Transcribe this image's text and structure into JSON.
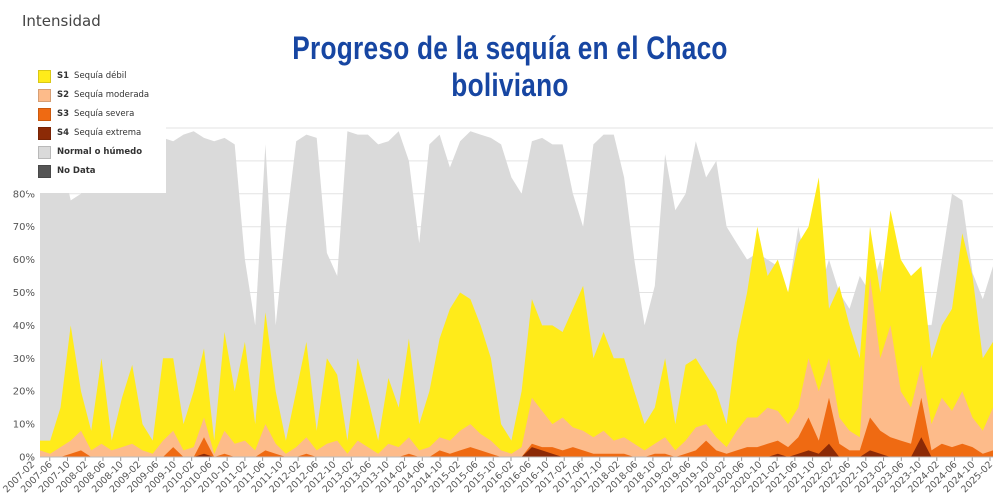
{
  "header": {
    "intensity_label": "Intensidad",
    "title": "Progreso de la sequía en el Chaco boliviano"
  },
  "legend": {
    "items": [
      {
        "code": "S1",
        "label": "Sequía débil",
        "color": "#ffeb1a"
      },
      {
        "code": "S2",
        "label": "Sequía moderada",
        "color": "#fdbb8a"
      },
      {
        "code": "S3",
        "label": "Sequía severa",
        "color": "#ef6a12"
      },
      {
        "code": "S4",
        "label": "Sequía extrema",
        "color": "#8c2a06"
      },
      {
        "code": "",
        "label": "Normal o húmedo",
        "color": "#dadada"
      },
      {
        "code": "",
        "label": "No Data",
        "color": "#555555"
      }
    ]
  },
  "chart_data": {
    "type": "area",
    "stacked": false,
    "y_tick_labels": [
      "0%",
      "10%",
      "20%",
      "30%",
      "40%",
      "50%",
      "60%",
      "70%",
      "80%"
    ],
    "ylim": [
      0,
      100
    ],
    "grid": true,
    "legend_position": "top-left",
    "x_tick_labels": [
      "2007-02",
      "2007-06",
      "2007-10",
      "2008-02",
      "2008-06",
      "2008-10",
      "2009-02",
      "2009-06",
      "2009-10",
      "2010-02",
      "2010-06",
      "2010-10",
      "2011-02",
      "2011-06",
      "2011-10",
      "2012-02",
      "2012-06",
      "2012-10",
      "2013-02",
      "2013-06",
      "2013-10",
      "2014-02",
      "2014-06",
      "2014-10",
      "2015-02",
      "2015-06",
      "2015-10",
      "2016-02",
      "2016-06",
      "2016-10",
      "2017-02",
      "2017-06",
      "2017-10",
      "2018-02",
      "2018-06",
      "2018-10",
      "2019-02",
      "2019-06",
      "2019-10",
      "2020-02",
      "2020-06",
      "2020-10",
      "2021-02",
      "2021-06",
      "2021-10",
      "2022-02",
      "2022-06",
      "2022-10",
      "2023-02",
      "2023-06",
      "2023-10",
      "2024-02",
      "2024-06",
      "2024-10",
      "2025-02"
    ],
    "series": [
      {
        "name": "Normal o húmedo",
        "color": "#dadada",
        "values": [
          98,
          90,
          92,
          78,
          80,
          96,
          98,
          99,
          97,
          95,
          94,
          92,
          97,
          96,
          98,
          99,
          97,
          96,
          97,
          95,
          60,
          40,
          95,
          40,
          70,
          96,
          98,
          97,
          62,
          55,
          99,
          98,
          98,
          95,
          96,
          99,
          90,
          65,
          95,
          98,
          88,
          96,
          99,
          98,
          97,
          95,
          85,
          80,
          96,
          97,
          95,
          95,
          80,
          70,
          95,
          98,
          98,
          85,
          60,
          40,
          52,
          92,
          75,
          80,
          96,
          85,
          90,
          70,
          65,
          60,
          62,
          60,
          58,
          50,
          70,
          55,
          50,
          60,
          50,
          45,
          55,
          50,
          60,
          45,
          55,
          50,
          40,
          40,
          60,
          80,
          78,
          56,
          48,
          58
        ]
      },
      {
        "name": "Sequía débil",
        "color": "#ffeb1a",
        "values": [
          5,
          5,
          15,
          40,
          20,
          8,
          30,
          5,
          18,
          28,
          10,
          5,
          30,
          30,
          10,
          20,
          33,
          5,
          38,
          20,
          35,
          10,
          44,
          20,
          5,
          20,
          35,
          8,
          30,
          25,
          5,
          30,
          18,
          5,
          24,
          15,
          36,
          10,
          20,
          36,
          45,
          50,
          48,
          40,
          30,
          10,
          5,
          20,
          48,
          40,
          40,
          38,
          45,
          52,
          30,
          38,
          30,
          30,
          20,
          10,
          15,
          30,
          10,
          28,
          30,
          25,
          20,
          10,
          35,
          50,
          70,
          55,
          60,
          50,
          65,
          70,
          85,
          45,
          52,
          40,
          30,
          70,
          50,
          75,
          60,
          55,
          58,
          30,
          40,
          45,
          68,
          55,
          30,
          35
        ]
      },
      {
        "name": "Sequía moderada",
        "color": "#fdbb8a",
        "values": [
          2,
          1,
          3,
          5,
          8,
          2,
          4,
          2,
          3,
          4,
          2,
          1,
          5,
          8,
          2,
          3,
          12,
          1,
          8,
          4,
          5,
          2,
          10,
          4,
          1,
          3,
          6,
          2,
          4,
          5,
          1,
          5,
          3,
          1,
          4,
          3,
          6,
          2,
          3,
          6,
          5,
          8,
          10,
          7,
          5,
          2,
          1,
          3,
          18,
          14,
          10,
          12,
          9,
          8,
          6,
          8,
          5,
          6,
          4,
          2,
          4,
          6,
          2,
          5,
          9,
          10,
          6,
          3,
          8,
          12,
          12,
          15,
          14,
          10,
          15,
          30,
          20,
          30,
          12,
          8,
          6,
          55,
          30,
          40,
          20,
          15,
          28,
          10,
          18,
          14,
          20,
          12,
          8,
          15
        ]
      },
      {
        "name": "Sequía severa",
        "color": "#ef6a12",
        "values": [
          0,
          0,
          0,
          1,
          2,
          0,
          0,
          0,
          0,
          0,
          0,
          0,
          0,
          3,
          0,
          0,
          6,
          0,
          1,
          0,
          0,
          0,
          2,
          1,
          0,
          0,
          1,
          0,
          0,
          0,
          0,
          0,
          0,
          0,
          0,
          0,
          1,
          0,
          0,
          2,
          1,
          2,
          3,
          2,
          1,
          0,
          0,
          0,
          4,
          3,
          3,
          2,
          3,
          2,
          1,
          1,
          1,
          1,
          0,
          0,
          1,
          1,
          0,
          1,
          2,
          5,
          2,
          1,
          2,
          3,
          3,
          4,
          5,
          3,
          6,
          12,
          5,
          18,
          4,
          2,
          2,
          12,
          8,
          6,
          5,
          4,
          18,
          2,
          4,
          3,
          4,
          3,
          1,
          2
        ]
      },
      {
        "name": "Sequía extrema",
        "color": "#8c2a06",
        "values": [
          0,
          0,
          0,
          0,
          0,
          0,
          0,
          0,
          0,
          0,
          0,
          0,
          0,
          0,
          0,
          0,
          1,
          0,
          0,
          0,
          0,
          0,
          0,
          0,
          0,
          0,
          0,
          0,
          0,
          0,
          0,
          0,
          0,
          0,
          0,
          0,
          0,
          0,
          0,
          0,
          0,
          0,
          0,
          0,
          0,
          0,
          0,
          0,
          3,
          2,
          1,
          0,
          0,
          0,
          0,
          0,
          0,
          0,
          0,
          0,
          0,
          0,
          0,
          0,
          0,
          0,
          0,
          0,
          0,
          0,
          0,
          0,
          1,
          0,
          1,
          2,
          1,
          4,
          0,
          0,
          0,
          2,
          1,
          0,
          0,
          0,
          6,
          0,
          0,
          0,
          0,
          0,
          0,
          0
        ]
      }
    ]
  }
}
